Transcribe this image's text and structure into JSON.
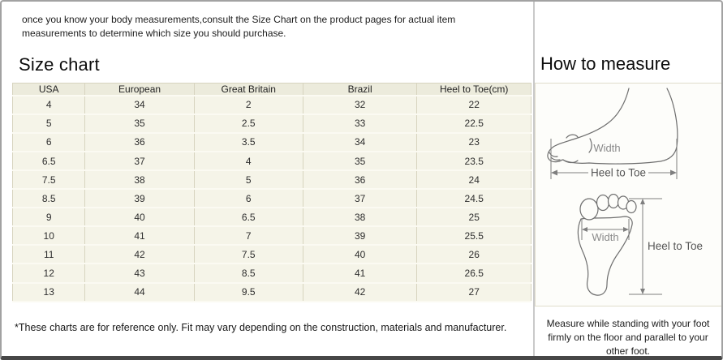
{
  "page": {
    "intro": "once you know your body measurements,consult the Size Chart on the product pages for actual item measurements to determine which size you should purchase."
  },
  "size_chart": {
    "title": "Size chart",
    "table": {
      "headers": [
        "USA",
        "European",
        "Great Britain",
        "Brazil",
        "Heel to Toe(cm)"
      ],
      "rows": [
        [
          "4",
          "34",
          "2",
          "32",
          "22"
        ],
        [
          "5",
          "35",
          "2.5",
          "33",
          "22.5"
        ],
        [
          "6",
          "36",
          "3.5",
          "34",
          "23"
        ],
        [
          "6.5",
          "37",
          "4",
          "35",
          "23.5"
        ],
        [
          "7.5",
          "38",
          "5",
          "36",
          "24"
        ],
        [
          "8.5",
          "39",
          "6",
          "37",
          "24.5"
        ],
        [
          "9",
          "40",
          "6.5",
          "38",
          "25"
        ],
        [
          "10",
          "41",
          "7",
          "39",
          "25.5"
        ],
        [
          "11",
          "42",
          "7.5",
          "40",
          "26"
        ],
        [
          "12",
          "43",
          "8.5",
          "41",
          "26.5"
        ],
        [
          "13",
          "44",
          "9.5",
          "42",
          "27"
        ]
      ]
    },
    "footnote": "*These charts are for reference only. Fit may vary depending on the construction, materials and manufacturer."
  },
  "how_to_measure": {
    "title": "How to measure",
    "side_view": {
      "width_label": "Width",
      "length_label": "Heel to Toe"
    },
    "top_view": {
      "width_label": "Width",
      "length_label": "Heel to Toe"
    },
    "note": "Measure while standing with your foot firmly on the floor and parallel to your other foot."
  },
  "colors": {
    "outer_border": "#a2a2a2",
    "outer_border_bottom": "#474747",
    "panel_divider": "#c9c9c9",
    "table_header_bg": "#ecebdc",
    "table_row_bg": "#f5f4e8",
    "table_border": "#d7d4bf",
    "row_separator": "#fbfaf2",
    "diagram_box_border": "#e0ddcc",
    "diagram_bg": "#fdfdfa",
    "diagram_stroke": "#6e6e6e",
    "diagram_label": "#8a8a8a"
  }
}
